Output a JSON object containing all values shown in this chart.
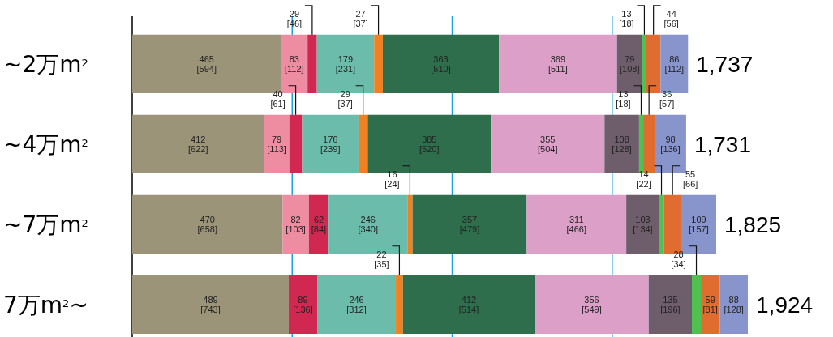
{
  "chart_data": {
    "type": "bar",
    "orientation": "horizontal",
    "stacked": true,
    "categories": [
      "~2万m$^{2}$",
      "~4万m$^{2}$",
      "~7万m$^{2}$",
      "7万m$^{2}$~"
    ],
    "ref_lines": [
      {
        "axis": "x",
        "value": 500,
        "color": "#1ea0e0"
      },
      {
        "axis": "x",
        "value": 1000,
        "color": "#1ea0e0"
      },
      {
        "axis": "x",
        "value": 1500,
        "color": "#1ea0e0"
      }
    ],
    "series": [
      {
        "color": "#9b9478",
        "values": [
          465,
          412,
          470,
          489
        ],
        "value_labels": [
          "465\n[594]",
          "412\n[622]",
          "470\n[658]",
          "489\n[743]"
        ]
      },
      {
        "color": "#ee8ca2",
        "values": [
          83,
          79,
          82,
          null
        ],
        "value_labels": [
          "83\n[112]",
          "79\n[113]",
          "82\n[103]",
          null
        ]
      },
      {
        "color": "#d02850",
        "values": [
          29,
          40,
          62,
          89
        ],
        "value_labels": [
          "29\n[46]",
          "40\n[61]",
          "62\n[84]",
          "89\n[136]"
        ]
      },
      {
        "color": "#6cbcac",
        "values": [
          179,
          176,
          246,
          246
        ],
        "value_labels": [
          "179\n[231]",
          "176\n[239]",
          "246\n[340]",
          "246\n[312]"
        ]
      },
      {
        "color": "#f08020",
        "values": [
          27,
          29,
          16,
          22
        ],
        "value_labels": [
          "27\n[37]",
          "29\n[37]",
          "16\n[24]",
          "22\n[35]"
        ]
      },
      {
        "color": "#2e6e4c",
        "values": [
          363,
          385,
          357,
          412
        ],
        "value_labels": [
          "363\n[510]",
          "385\n[520]",
          "357\n[479]",
          "412\n[514]"
        ]
      },
      {
        "color": "#dca0c8",
        "values": [
          369,
          355,
          311,
          356
        ],
        "value_labels": [
          "369\n[511]",
          "355\n[504]",
          "311\n[466]",
          "356\n[549]"
        ]
      },
      {
        "color": "#6e5e6c",
        "values": [
          79,
          108,
          103,
          135
        ],
        "value_labels": [
          "79\n[108]",
          "108\n[128]",
          "103\n[134]",
          "135\n[196]"
        ]
      },
      {
        "color": "#50c050",
        "values": [
          13,
          13,
          14,
          28
        ],
        "value_labels": [
          "13\n[18]",
          "13\n[18]",
          "14\n[22]",
          "28\n[34]"
        ]
      },
      {
        "color": "#e06c30",
        "values": [
          44,
          36,
          55,
          59
        ],
        "value_labels": [
          "44\n[56]",
          "36\n[57]",
          "55\n[66]",
          "59\n[81]"
        ]
      },
      {
        "color": "#8894cc",
        "values": [
          86,
          98,
          109,
          88
        ],
        "value_labels": [
          "86\n[112]",
          "98\n[136]",
          "109\n[157]",
          "88\n[128]"
        ]
      }
    ],
    "totals": [
      "1,737",
      "1,731",
      "1,825",
      "1,924"
    ]
  }
}
